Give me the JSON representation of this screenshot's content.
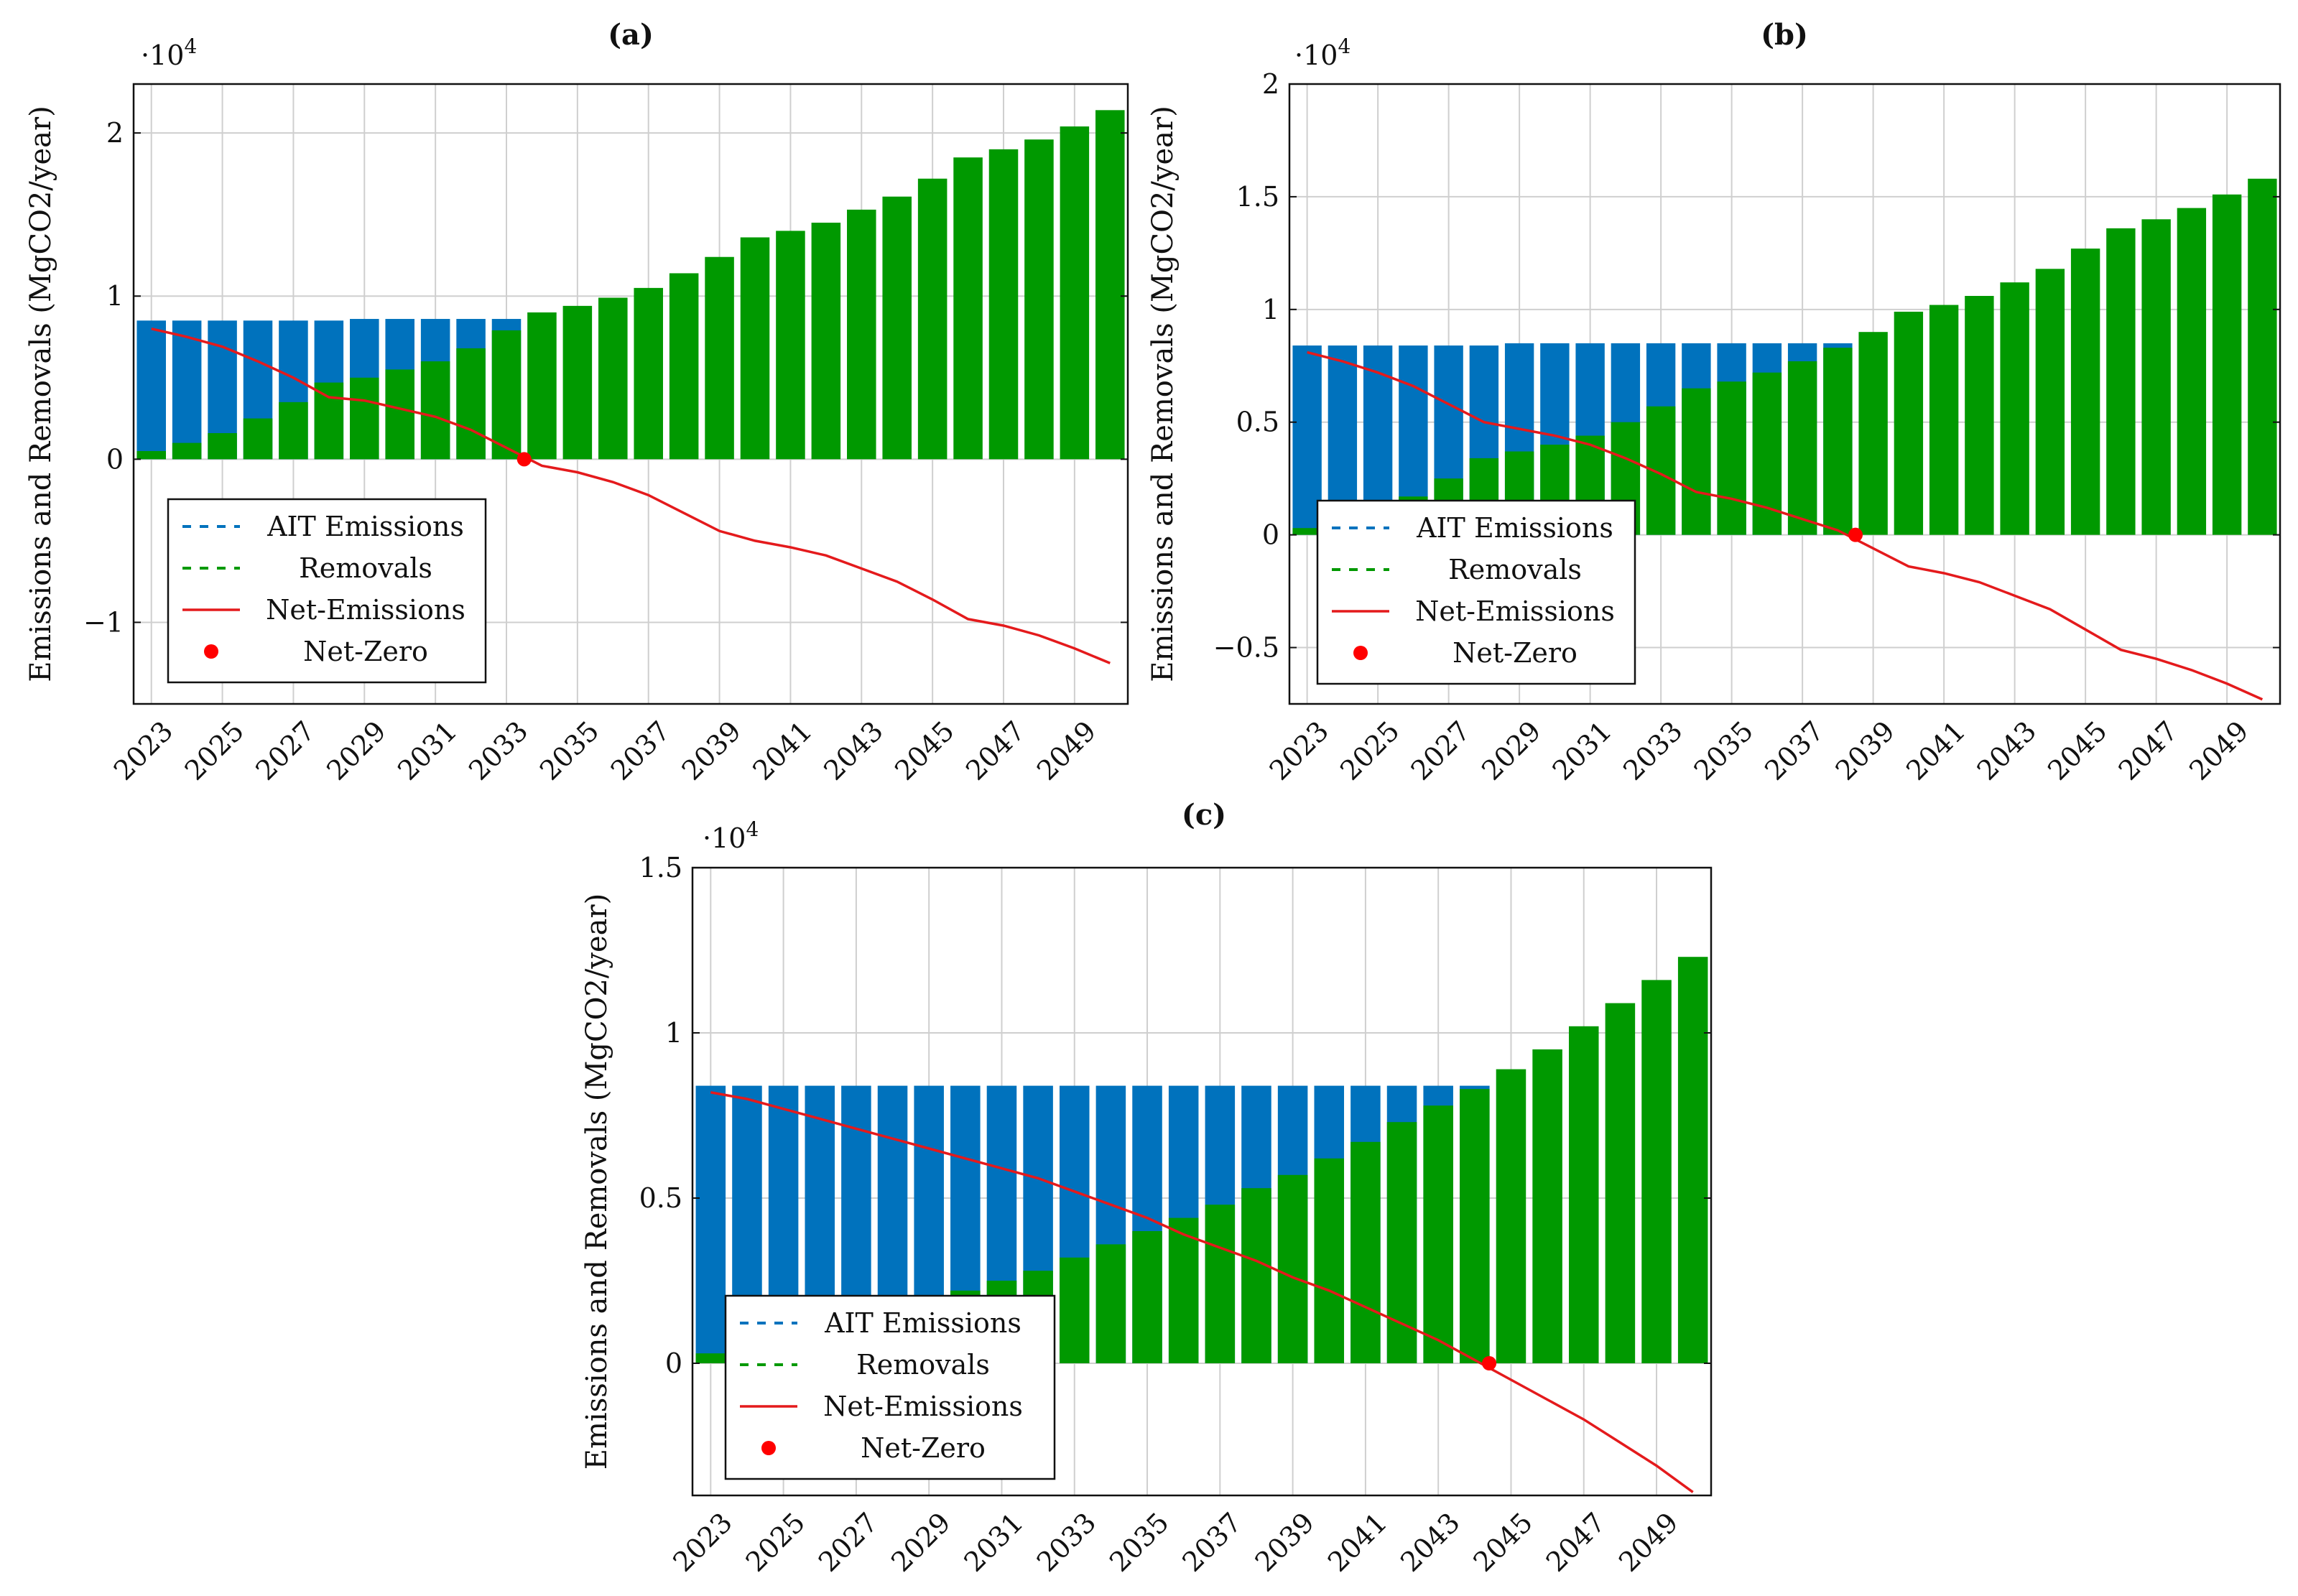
{
  "figure": {
    "panel_labels": [
      "(a)",
      "(b)",
      "(c)"
    ]
  },
  "legend": {
    "items": [
      {
        "label": "AIT Emissions",
        "style": "dashed",
        "color": "#0072bd"
      },
      {
        "label": "Removals",
        "style": "dashed",
        "color": "#009900"
      },
      {
        "label": "Net-Emissions",
        "style": "line",
        "color": "#e41a1c"
      },
      {
        "label": "Net-Zero",
        "style": "dot",
        "color": "#ff0000"
      }
    ]
  },
  "chart_data": [
    {
      "type": "bar",
      "panel": "(a)",
      "title": "(a)",
      "ylabel": "Emissions and Removals (MgCO2/year)",
      "y_multiplier": "·10^4",
      "ylim": [
        -1.5,
        2.3
      ],
      "yticks": [
        -1,
        0,
        1,
        2
      ],
      "ytick_labels": [
        "−1",
        "0",
        "1",
        "2"
      ],
      "categories": [
        2023,
        2024,
        2025,
        2026,
        2027,
        2028,
        2029,
        2030,
        2031,
        2032,
        2033,
        2034,
        2035,
        2036,
        2037,
        2038,
        2039,
        2040,
        2041,
        2042,
        2043,
        2044,
        2045,
        2046,
        2047,
        2048,
        2049,
        2050
      ],
      "xtick_labels": [
        "2023",
        "2025",
        "2027",
        "2029",
        "2031",
        "2033",
        "2035",
        "2037",
        "2039",
        "2041",
        "2043",
        "2045",
        "2047",
        "2049"
      ],
      "series": [
        {
          "name": "AIT Emissions",
          "color": "#0072bd",
          "values": [
            0.85,
            0.85,
            0.85,
            0.85,
            0.85,
            0.85,
            0.86,
            0.86,
            0.86,
            0.86,
            0.86,
            0,
            0,
            0,
            0,
            0,
            0,
            0,
            0,
            0,
            0,
            0,
            0,
            0,
            0,
            0,
            0,
            0
          ]
        },
        {
          "name": "Removals",
          "color": "#009900",
          "values": [
            0.05,
            0.1,
            0.16,
            0.25,
            0.35,
            0.47,
            0.5,
            0.55,
            0.6,
            0.68,
            0.79,
            0.9,
            0.94,
            0.99,
            1.05,
            1.14,
            1.24,
            1.36,
            1.4,
            1.45,
            1.53,
            1.61,
            1.72,
            1.85,
            1.9,
            1.96,
            2.04,
            2.14
          ]
        }
      ],
      "net_emissions": {
        "x": [
          2023,
          2024,
          2025,
          2026,
          2027,
          2028,
          2029,
          2030,
          2031,
          2032,
          2033,
          2034,
          2035,
          2036,
          2037,
          2038,
          2039,
          2040,
          2041,
          2042,
          2043,
          2044,
          2045,
          2046,
          2047,
          2048,
          2049,
          2050
        ],
        "y": [
          0.8,
          0.75,
          0.69,
          0.6,
          0.5,
          0.38,
          0.36,
          0.31,
          0.26,
          0.18,
          0.07,
          -0.04,
          -0.08,
          -0.14,
          -0.22,
          -0.33,
          -0.44,
          -0.5,
          -0.54,
          -0.59,
          -0.67,
          -0.75,
          -0.86,
          -0.98,
          -1.02,
          -1.08,
          -1.16,
          -1.25
        ]
      },
      "net_zero": {
        "x": 2033.5,
        "y": 0
      }
    },
    {
      "type": "bar",
      "panel": "(b)",
      "title": "(b)",
      "ylabel": "Emissions and Removals (MgCO2/year)",
      "y_multiplier": "·10^4",
      "ylim": [
        -0.75,
        2.0
      ],
      "yticks": [
        -0.5,
        0,
        0.5,
        1,
        1.5,
        2
      ],
      "ytick_labels": [
        "−0.5",
        "0",
        "0.5",
        "1",
        "1.5",
        "2"
      ],
      "categories": [
        2023,
        2024,
        2025,
        2026,
        2027,
        2028,
        2029,
        2030,
        2031,
        2032,
        2033,
        2034,
        2035,
        2036,
        2037,
        2038,
        2039,
        2040,
        2041,
        2042,
        2043,
        2044,
        2045,
        2046,
        2047,
        2048,
        2049,
        2050
      ],
      "xtick_labels": [
        "2023",
        "2025",
        "2027",
        "2029",
        "2031",
        "2033",
        "2035",
        "2037",
        "2039",
        "2041",
        "2043",
        "2045",
        "2047",
        "2049"
      ],
      "series": [
        {
          "name": "AIT Emissions",
          "color": "#0072bd",
          "values": [
            0.84,
            0.84,
            0.84,
            0.84,
            0.84,
            0.84,
            0.85,
            0.85,
            0.85,
            0.85,
            0.85,
            0.85,
            0.85,
            0.85,
            0.85,
            0.85,
            0,
            0,
            0,
            0,
            0,
            0,
            0,
            0,
            0,
            0,
            0,
            0
          ]
        },
        {
          "name": "Removals",
          "color": "#009900",
          "values": [
            0.03,
            0.06,
            0.11,
            0.17,
            0.25,
            0.34,
            0.37,
            0.4,
            0.44,
            0.5,
            0.57,
            0.65,
            0.68,
            0.72,
            0.77,
            0.83,
            0.9,
            0.99,
            1.02,
            1.06,
            1.12,
            1.18,
            1.27,
            1.36,
            1.4,
            1.45,
            1.51,
            1.58
          ]
        }
      ],
      "net_emissions": {
        "x": [
          2023,
          2024,
          2025,
          2026,
          2027,
          2028,
          2029,
          2030,
          2031,
          2032,
          2033,
          2034,
          2035,
          2036,
          2037,
          2038,
          2039,
          2040,
          2041,
          2042,
          2043,
          2044,
          2045,
          2046,
          2047,
          2048,
          2049,
          2050
        ],
        "y": [
          0.81,
          0.77,
          0.72,
          0.66,
          0.58,
          0.5,
          0.47,
          0.44,
          0.4,
          0.34,
          0.27,
          0.19,
          0.16,
          0.12,
          0.07,
          0.02,
          -0.06,
          -0.14,
          -0.17,
          -0.21,
          -0.27,
          -0.33,
          -0.42,
          -0.51,
          -0.55,
          -0.6,
          -0.66,
          -0.73
        ]
      },
      "net_zero": {
        "x": 2038.5,
        "y": 0
      }
    },
    {
      "type": "bar",
      "panel": "(c)",
      "title": "(c)",
      "ylabel": "Emissions and Removals (MgCO2/year)",
      "y_multiplier": "·10^4",
      "ylim": [
        -0.4,
        1.5
      ],
      "yticks": [
        0,
        0.5,
        1,
        1.5
      ],
      "ytick_labels": [
        "0",
        "0.5",
        "1",
        "1.5"
      ],
      "categories": [
        2023,
        2024,
        2025,
        2026,
        2027,
        2028,
        2029,
        2030,
        2031,
        2032,
        2033,
        2034,
        2035,
        2036,
        2037,
        2038,
        2039,
        2040,
        2041,
        2042,
        2043,
        2044,
        2045,
        2046,
        2047,
        2048,
        2049,
        2050
      ],
      "xtick_labels": [
        "2023",
        "2025",
        "2027",
        "2029",
        "2031",
        "2033",
        "2035",
        "2037",
        "2039",
        "2041",
        "2043",
        "2045",
        "2047",
        "2049"
      ],
      "series": [
        {
          "name": "AIT Emissions",
          "color": "#0072bd",
          "values": [
            0.84,
            0.84,
            0.84,
            0.84,
            0.84,
            0.84,
            0.84,
            0.84,
            0.84,
            0.84,
            0.84,
            0.84,
            0.84,
            0.84,
            0.84,
            0.84,
            0.84,
            0.84,
            0.84,
            0.84,
            0.84,
            0.84,
            0,
            0,
            0,
            0,
            0,
            0
          ]
        },
        {
          "name": "Removals",
          "color": "#009900",
          "values": [
            0.03,
            0.05,
            0.08,
            0.1,
            0.13,
            0.16,
            0.19,
            0.22,
            0.25,
            0.28,
            0.32,
            0.36,
            0.4,
            0.44,
            0.48,
            0.53,
            0.57,
            0.62,
            0.67,
            0.73,
            0.78,
            0.83,
            0.89,
            0.95,
            1.02,
            1.09,
            1.16,
            1.23
          ]
        }
      ],
      "net_emissions": {
        "x": [
          2023,
          2024,
          2025,
          2026,
          2027,
          2028,
          2029,
          2030,
          2031,
          2032,
          2033,
          2034,
          2035,
          2036,
          2037,
          2038,
          2039,
          2040,
          2041,
          2042,
          2043,
          2044,
          2045,
          2046,
          2047,
          2048,
          2049,
          2050
        ],
        "y": [
          0.82,
          0.8,
          0.77,
          0.74,
          0.71,
          0.68,
          0.65,
          0.62,
          0.59,
          0.56,
          0.52,
          0.48,
          0.44,
          0.39,
          0.35,
          0.31,
          0.26,
          0.22,
          0.17,
          0.12,
          0.07,
          0.01,
          -0.05,
          -0.11,
          -0.17,
          -0.24,
          -0.31,
          -0.39
        ]
      },
      "net_zero": {
        "x": 2044.4,
        "y": 0
      }
    }
  ]
}
